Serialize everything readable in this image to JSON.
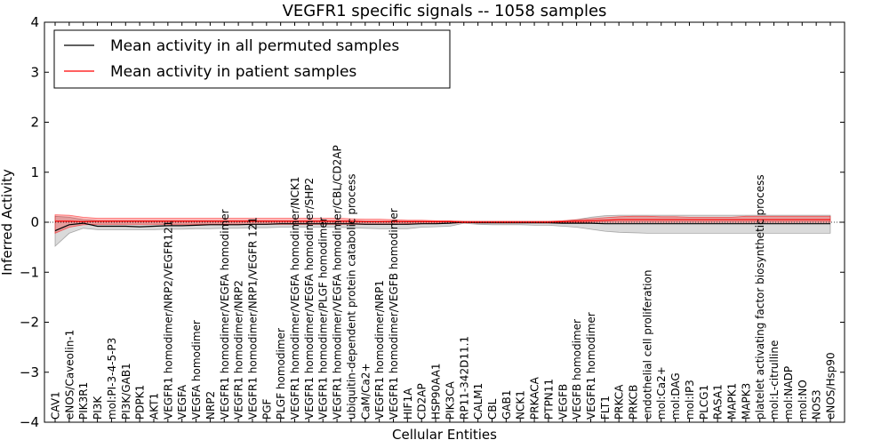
{
  "chart_data": {
    "type": "line",
    "title": "VEGFR1 specific signals -- 1058 samples",
    "xlabel": "Cellular Entities",
    "ylabel": "Inferred Activity",
    "ylim": [
      -4,
      4
    ],
    "yticks": [
      -4,
      -3,
      -2,
      -1,
      0,
      1,
      2,
      3,
      4
    ],
    "ytick_labels": [
      "−4",
      "−3",
      "−2",
      "−1",
      "0",
      "1",
      "2",
      "3",
      "4"
    ],
    "grid": false,
    "legend_position": "top-left",
    "categories": [
      "CAV1",
      "eNOS/Caveolin-1",
      "PIK3R1",
      "PI3K",
      "mol:PI-3-4-5-P3",
      "PI3K/GAB1",
      "PDPK1",
      "AKT1",
      "VEGFR1 homodimer/NRP2/VEGFR121",
      "VEGFA",
      "VEGFA homodimer",
      "NRP2",
      "VEGFR1 homodimer/VEGFA homodimer",
      "VEGFR1 homodimer/NRP2",
      "VEGFR1 homodimer/NRP1/VEGFR 121",
      "PGF",
      "PLGF homodimer",
      "VEGFR1 homodimer/VEGFA homodimer/NCK1",
      "VEGFR1 homodimer/VEGFA homodimer/SHP2",
      "VEGFR1 homodimer/PLGF homodimer",
      "VEGFR1 homodimer/VEGFA homodimer/CBL/CD2AP",
      "ubiquitin-dependent protein catabolic process",
      "CaM/Ca2+",
      "VEGFR1 homodimer/NRP1",
      "VEGFR1 homodimer/VEGFB homodimer",
      "HIF1A",
      "CD2AP",
      "HSP90AA1",
      "PIK3CA",
      "RP11-342D11.1",
      "CALM1",
      "CBL",
      "GAB1",
      "NCK1",
      "PRKACA",
      "PTPN11",
      "VEGFB",
      "VEGFB homodimer",
      "VEGFR1 homodimer",
      "FLT1",
      "PRKCA",
      "PRKCB",
      "endothelial cell proliferation",
      "mol:Ca2+",
      "mol:DAG",
      "mol:IP3",
      "PLCG1",
      "RASA1",
      "MAPK1",
      "MAPK3",
      "platelet activating factor biosynthetic process",
      "mol:L-citrulline",
      "mol:NADP",
      "mol:NO",
      "NOS3",
      "eNOS/Hsp90"
    ],
    "series": [
      {
        "name": "Mean activity in all permuted samples",
        "color": "#000000",
        "values": [
          -0.17,
          -0.05,
          -0.02,
          -0.08,
          -0.08,
          -0.08,
          -0.09,
          -0.08,
          -0.07,
          -0.07,
          -0.06,
          -0.05,
          -0.05,
          -0.05,
          -0.04,
          -0.04,
          -0.03,
          -0.03,
          -0.03,
          -0.03,
          -0.03,
          -0.03,
          -0.04,
          -0.04,
          -0.04,
          -0.04,
          -0.03,
          -0.03,
          -0.02,
          0.0,
          -0.01,
          -0.01,
          -0.01,
          -0.01,
          -0.01,
          -0.01,
          -0.02,
          -0.02,
          -0.02,
          -0.03,
          -0.03,
          -0.03,
          -0.03,
          -0.03,
          -0.03,
          -0.03,
          -0.03,
          -0.03,
          -0.03,
          -0.03,
          -0.03,
          -0.03,
          -0.03,
          -0.03,
          -0.03,
          -0.03
        ],
        "band_upper": [
          0.12,
          0.1,
          0.05,
          0.03,
          0.03,
          0.03,
          0.03,
          0.03,
          0.03,
          0.03,
          0.03,
          0.03,
          0.03,
          0.03,
          0.03,
          0.03,
          0.03,
          0.03,
          0.03,
          0.03,
          0.03,
          0.03,
          0.02,
          0.02,
          0.02,
          0.02,
          0.02,
          0.01,
          0.01,
          0.01,
          0.01,
          0.01,
          0.01,
          0.01,
          0.01,
          0.01,
          0.02,
          0.05,
          0.1,
          0.13,
          0.14,
          0.14,
          0.14,
          0.14,
          0.14,
          0.14,
          0.14,
          0.14,
          0.14,
          0.14,
          0.14,
          0.14,
          0.14,
          0.14,
          0.14,
          0.14
        ],
        "band_lower": [
          -0.48,
          -0.22,
          -0.12,
          -0.15,
          -0.15,
          -0.15,
          -0.15,
          -0.15,
          -0.14,
          -0.14,
          -0.13,
          -0.13,
          -0.12,
          -0.12,
          -0.11,
          -0.11,
          -0.1,
          -0.1,
          -0.1,
          -0.1,
          -0.1,
          -0.11,
          -0.12,
          -0.13,
          -0.13,
          -0.13,
          -0.1,
          -0.09,
          -0.08,
          -0.02,
          -0.04,
          -0.05,
          -0.05,
          -0.05,
          -0.06,
          -0.06,
          -0.08,
          -0.1,
          -0.14,
          -0.18,
          -0.2,
          -0.21,
          -0.22,
          -0.22,
          -0.22,
          -0.22,
          -0.22,
          -0.22,
          -0.22,
          -0.22,
          -0.22,
          -0.22,
          -0.22,
          -0.22,
          -0.22,
          -0.22
        ]
      },
      {
        "name": "Mean activity in patient samples",
        "color": "#ff0000",
        "values": [
          0.02,
          0.02,
          0.01,
          0.02,
          0.02,
          0.02,
          0.02,
          0.02,
          0.02,
          0.02,
          0.02,
          0.02,
          0.02,
          0.02,
          0.02,
          0.02,
          0.02,
          0.02,
          0.02,
          0.02,
          0.02,
          0.02,
          0.01,
          0.01,
          0.01,
          0.01,
          0.01,
          0.01,
          0.01,
          0.0,
          0.0,
          0.0,
          0.0,
          0.0,
          0.0,
          0.0,
          0.01,
          0.02,
          0.03,
          0.04,
          0.05,
          0.05,
          0.05,
          0.05,
          0.05,
          0.05,
          0.05,
          0.05,
          0.05,
          0.05,
          0.05,
          0.05,
          0.05,
          0.05,
          0.05,
          0.05
        ],
        "band_upper": [
          0.15,
          0.14,
          0.1,
          0.08,
          0.08,
          0.08,
          0.08,
          0.08,
          0.08,
          0.08,
          0.08,
          0.08,
          0.08,
          0.08,
          0.08,
          0.08,
          0.08,
          0.08,
          0.08,
          0.08,
          0.08,
          0.07,
          0.06,
          0.06,
          0.05,
          0.04,
          0.04,
          0.03,
          0.03,
          0.02,
          0.02,
          0.02,
          0.02,
          0.02,
          0.02,
          0.02,
          0.03,
          0.05,
          0.07,
          0.09,
          0.11,
          0.12,
          0.12,
          0.11,
          0.11,
          0.1,
          0.1,
          0.1,
          0.1,
          0.12,
          0.12,
          0.12,
          0.12,
          0.12,
          0.12,
          0.12
        ],
        "band_lower": [
          -0.22,
          -0.1,
          -0.05,
          -0.04,
          -0.04,
          -0.04,
          -0.04,
          -0.04,
          -0.04,
          -0.04,
          -0.04,
          -0.04,
          -0.04,
          -0.04,
          -0.04,
          -0.04,
          -0.04,
          -0.04,
          -0.04,
          -0.04,
          -0.04,
          -0.04,
          -0.04,
          -0.04,
          -0.04,
          -0.03,
          -0.03,
          -0.02,
          -0.02,
          -0.01,
          -0.01,
          -0.01,
          -0.01,
          -0.01,
          -0.01,
          -0.01,
          -0.01,
          -0.01,
          0.0,
          0.0,
          0.0,
          0.0,
          0.0,
          0.0,
          0.0,
          0.0,
          0.0,
          0.0,
          0.0,
          0.0,
          0.0,
          0.0,
          0.0,
          0.0,
          0.0,
          0.0
        ]
      }
    ]
  }
}
